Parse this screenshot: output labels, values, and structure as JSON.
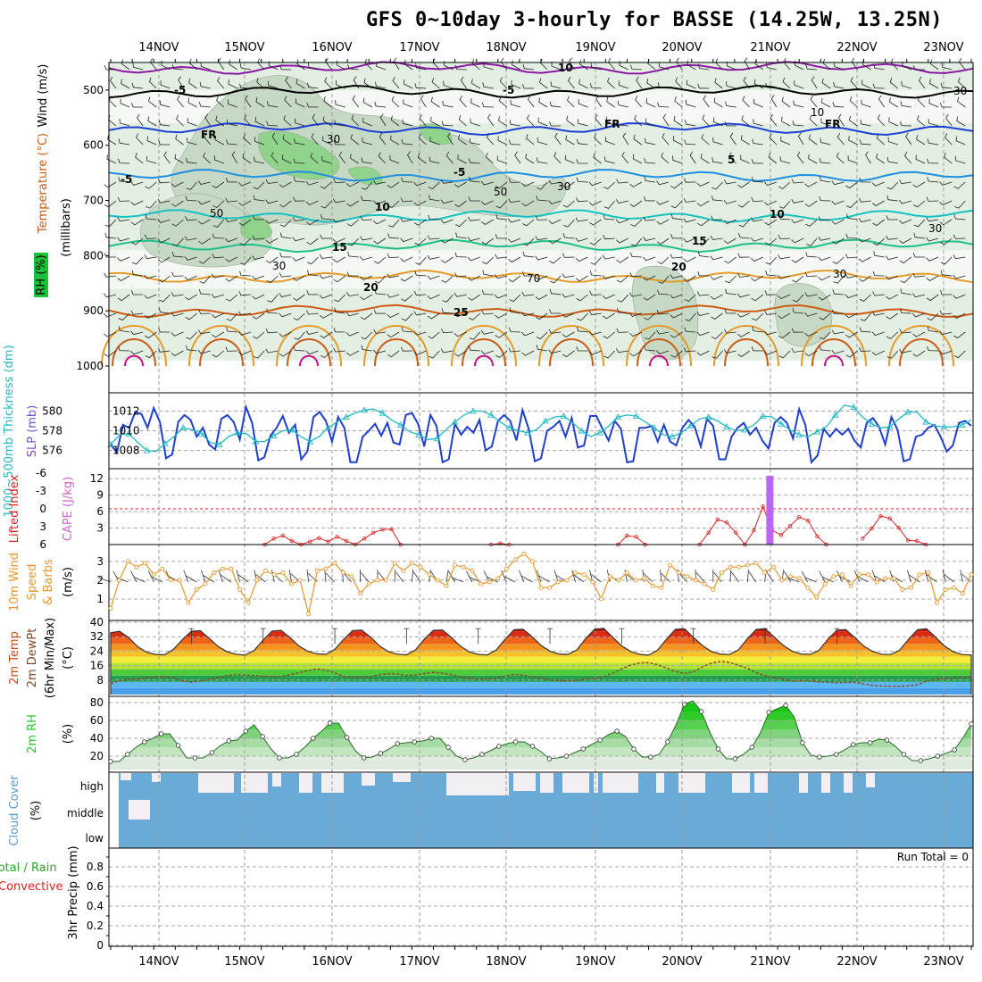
{
  "title": "GFS 0~10day 3-hourly for BASSE (14.25W, 13.25N)",
  "days": [
    "14NOV",
    "15NOV",
    "16NOV",
    "17NOV",
    "18NOV",
    "19NOV",
    "20NOV",
    "21NOV",
    "22NOV",
    "23NOV"
  ],
  "colors": {
    "rh_shade": [
      "#e3efe2",
      "#c6d9c4",
      "#8fd48a"
    ],
    "temp_lines": [
      "#8b1aa5",
      "#000000",
      "#1e3fd4",
      "#1e8fe0",
      "#16c2c2",
      "#1fbf8a",
      "#e59a2a",
      "#cc5a12",
      "#cc0a8a"
    ],
    "slp": "#1f3fcf",
    "thickness": "#21b8c4",
    "cape": "#bb66ee",
    "lifted_index": "#dd2222",
    "wind10": "#e8962a",
    "dewpt": "#888888",
    "cloud": "#6aaad6",
    "rh2m": "#22cc22"
  },
  "chart_data": [
    {
      "type": "heatmap",
      "panel": "upper-air",
      "ylabel_rh": "RH (%)",
      "ylabel_temp": "Temperature (°C)",
      "ylabel_wind": "Wind (m/s)",
      "ylabel_p": "(millibars)",
      "yticks": [
        "500",
        "600",
        "700",
        "800",
        "900",
        "1000"
      ],
      "ylim": [
        450,
        1000
      ],
      "isotherm_labels": [
        "10",
        "-5",
        "-5",
        "FR",
        "FR",
        "FR",
        "-5",
        "-5",
        "5",
        "10",
        "10",
        "15",
        "15",
        "20",
        "20",
        "25"
      ],
      "rh_labels": [
        "30",
        "50",
        "30",
        "50",
        "30",
        "70",
        "10",
        "30",
        "30",
        "30"
      ],
      "isotherms": [
        {
          "name": "-10",
          "level_mb": 460
        },
        {
          "name": "-5",
          "level_mb": 503
        },
        {
          "name": "FR",
          "level_mb": 570
        },
        {
          "name": "5",
          "level_mb": 655
        },
        {
          "name": "10",
          "level_mb": 728
        },
        {
          "name": "15",
          "level_mb": 782
        },
        {
          "name": "20",
          "level_mb": 838
        },
        {
          "name": "25",
          "level_mb": 900
        }
      ]
    },
    {
      "type": "line",
      "panel": "slp-thickness",
      "ylabel_left": "1000~500mb Thickness (dm)",
      "ylabel_right": "SLP (mb)",
      "yticks_left": [
        "580",
        "578",
        "576"
      ],
      "yticks_right": [
        "1012",
        "1010",
        "1008"
      ],
      "ylim_left": [
        574.6,
        581.4
      ],
      "ylim_right": [
        1006.6,
        1013.4
      ],
      "series": [
        {
          "name": "SLP (mb)",
          "axis": "right",
          "values": [
            1008.6,
            1007.8,
            1010.6,
            1010.3,
            1011.9,
            1011.7,
            1010.3,
            1012.3,
            1010.9,
            1007.2,
            1007.6,
            1010.9,
            1011.6,
            1011.1,
            1009.4,
            1010.3,
            1008.6,
            1008.1,
            1011.2,
            1011.6,
            1010.9,
            1009.1,
            1012.4,
            1010.8,
            1007.0,
            1007.3,
            1009.5,
            1010.3,
            1011.5,
            1009.8,
            1010.6,
            1007.1,
            1007.9,
            1011.4,
            1011.9,
            1011.0,
            1008.9,
            1011.4,
            1010.3,
            1006.8,
            1006.8,
            1009.4,
            1010.0,
            1010.7,
            1009.5,
            1010.8,
            1008.8,
            1008.6,
            1011.6,
            1011.8,
            1010.7,
            1008.4,
            1011.6,
            1010.5,
            1006.8,
            1007.1,
            1010.7,
            1009.6,
            1010.4,
            1009.8,
            1011.1,
            1008.0,
            1008.4,
            1011.0,
            1011.6,
            1011.0,
            1009.0,
            1012.1,
            1010.2,
            1006.9,
            1007.2,
            1010.0,
            1010.4,
            1011.0,
            1009.4,
            1011.3,
            1008.3,
            1008.5,
            1011.5,
            1011.5,
            1010.2,
            1009.0,
            1011.0,
            1010.2,
            1006.8,
            1006.9,
            1010.3,
            1010.3,
            1010.5,
            1008.9,
            1010.6,
            1008.9,
            1008.5,
            1010.3,
            1011.1,
            1010.4,
            1008.4,
            1011.2,
            1010.5,
            1007.1,
            1007.1,
            1009.4,
            1010.3,
            1010.8,
            1009.6,
            1010.3,
            1009.0,
            1008.2,
            1010.8,
            1011.4,
            1010.8,
            1009.2,
            1012.2,
            1010.6,
            1006.8,
            1007.5,
            1010.2,
            1009.4,
            1010.2,
            1009.6,
            1010.2,
            1009.0,
            1008.3,
            1010.8,
            1011.3,
            1010.4,
            1008.6,
            1011.4,
            1010.1,
            1006.9,
            1007.1,
            1009.4,
            1009.6,
            1010.3,
            1010.6,
            1009.4,
            1007.9,
            1008.5,
            1010.8,
            1011.0,
            1010.5
          ]
        },
        {
          "name": "1000~500mb Thickness (dm)",
          "axis": "left",
          "values": [
            576.6,
            577.6,
            577.7,
            576.8,
            576.0,
            575.9,
            576.7,
            577.4,
            578.3,
            578.1,
            577.7,
            576.8,
            576.6,
            577.4,
            577.8,
            577.7,
            576.9,
            576.9,
            577.5,
            578.0,
            578.1,
            577.4,
            576.9,
            577.4,
            578.3,
            578.9,
            579.4,
            579.8,
            580.1,
            580.2,
            579.8,
            579.1,
            578.6,
            577.9,
            577.6,
            577.1,
            577.2,
            578.1,
            578.9,
            579.6,
            580.0,
            580.0,
            579.6,
            578.9,
            578.3,
            578.0,
            577.8,
            578.1,
            579.0,
            579.4,
            579.5,
            578.8,
            578.0,
            577.4,
            577.8,
            578.5,
            579.4,
            579.6,
            579.5,
            578.9,
            578.3,
            577.6,
            577.4,
            577.8,
            578.5,
            579.2,
            579.4,
            579.0,
            578.4,
            578.0,
            578.1,
            578.6,
            579.5,
            579.4,
            578.7,
            578.1,
            577.6,
            577.4,
            577.9,
            578.4,
            579.6,
            580.6,
            580.4,
            579.4,
            578.7,
            578.3,
            578.4,
            579.2,
            579.9,
            579.9,
            578.9,
            578.5,
            578.4,
            578.4,
            578.6,
            579.1
          ]
        }
      ]
    },
    {
      "type": "line",
      "panel": "cape-li",
      "ylabel_left": "Lifted Index",
      "ylabel_right": "CAPE (J/kg)",
      "yticks_left": [
        "-6",
        "-3",
        "0",
        "3",
        "6"
      ],
      "yticks_right": [
        "12",
        "9",
        "6",
        "3"
      ],
      "ylim_left": [
        -6,
        6
      ],
      "ylim_right": [
        0,
        13
      ],
      "series": [
        {
          "name": "Lifted Index",
          "values": [
            null,
            null,
            null,
            null,
            null,
            null,
            null,
            null,
            null,
            null,
            null,
            null,
            null,
            null,
            null,
            null,
            null,
            6.0,
            5.0,
            4.5,
            5.4,
            6.0,
            5.5,
            4.9,
            5.5,
            4.7,
            5.4,
            6.0,
            5.0,
            4.0,
            3.5,
            3.4,
            6.0,
            null,
            null,
            null,
            null,
            null,
            null,
            null,
            null,
            null,
            6.0,
            5.8,
            6.0,
            null,
            null,
            null,
            null,
            null,
            null,
            null,
            null,
            null,
            null,
            null,
            6.0,
            4.5,
            4.7,
            6.0,
            null,
            null,
            null,
            null,
            null,
            6.0,
            4.0,
            1.8,
            2.3,
            4.0,
            6.0,
            3.6,
            -0.4,
            3.6,
            4.4,
            2.9,
            1.4,
            2.0,
            4.6,
            6.0,
            null,
            null,
            null,
            5.0,
            3.3,
            1.2,
            1.6,
            3.2,
            5.3,
            5.4,
            6.0,
            null,
            null,
            null,
            null,
            null
          ]
        },
        {
          "name": "CAPE (J/kg)",
          "values": [
            0,
            0,
            0,
            0,
            0,
            0,
            0,
            0,
            0,
            0,
            0,
            0,
            0,
            0,
            0,
            0,
            0,
            0,
            0,
            0,
            0,
            0,
            0,
            0,
            0,
            0,
            0,
            0,
            0,
            0,
            0,
            0,
            0,
            0,
            0,
            0,
            0,
            0,
            0,
            0,
            0,
            0,
            0,
            0,
            0,
            0,
            0,
            0,
            0,
            0,
            0,
            0,
            0,
            0,
            0,
            0,
            0,
            0,
            0,
            0,
            0,
            0,
            0,
            0,
            0,
            0,
            0,
            0,
            0,
            0,
            0,
            0,
            12.5,
            0,
            0,
            0,
            0,
            0,
            0,
            0,
            0,
            0,
            0,
            0,
            0,
            0,
            0,
            0,
            0,
            0,
            0,
            0,
            0,
            0,
            0
          ]
        }
      ]
    },
    {
      "type": "line",
      "panel": "wind10m",
      "ylabel": "10m Wind Speed & Barbs (m/s)",
      "yticks": [
        "3",
        "2",
        "1"
      ],
      "ylim": [
        0,
        3.8
      ],
      "series": [
        {
          "name": "10m Wind Speed",
          "values": [
            0.5,
            2.0,
            3.0,
            2.7,
            2.9,
            2.3,
            2.6,
            2.0,
            2.0,
            0.8,
            1.5,
            1.8,
            2.4,
            2.6,
            2.6,
            1.5,
            0.8,
            2.0,
            2.5,
            2.3,
            2.4,
            1.8,
            2.0,
            0.2,
            2.5,
            2.6,
            2.9,
            2.4,
            2.2,
            1.3,
            1.8,
            2.0,
            2.0,
            2.9,
            2.5,
            2.9,
            2.7,
            2.3,
            2.0,
            1.7,
            2.8,
            2.7,
            2.5,
            1.8,
            1.9,
            2.1,
            2.6,
            3.1,
            3.4,
            3.0,
            1.6,
            1.6,
            1.9,
            2.0,
            2.4,
            2.3,
            1.9,
            1.0,
            2.2,
            2.0,
            2.4,
            2.0,
            2.1,
            1.7,
            1.6,
            2.8,
            2.4,
            2.2,
            2.0,
            1.8,
            1.5,
            2.4,
            2.7,
            2.7,
            2.8,
            2.9,
            2.4,
            2.7,
            2.0,
            2.2,
            2.1,
            1.6,
            1.1,
            1.8,
            2.2,
            2.3,
            1.7,
            2.3,
            2.3,
            1.9,
            2.1,
            2.1,
            1.5,
            1.6,
            2.3,
            2.4,
            0.8,
            1.5,
            1.6,
            1.3,
            2.3
          ]
        }
      ]
    },
    {
      "type": "area",
      "panel": "temp2m",
      "ylabel": "2m Temp 2m DewPt (6hr Min/Max) (°C)",
      "yticks": [
        "40",
        "32",
        "24",
        "16",
        "8"
      ],
      "ylim": [
        0,
        40
      ],
      "series": [
        {
          "name": "2m Temp",
          "values": [
            34.2,
            35.0,
            31.5,
            26.5,
            23.4,
            22.2,
            22.0,
            25.0,
            30.3,
            35.0,
            35.3,
            31.0,
            26.5,
            23.6,
            22.3,
            21.8,
            24.4,
            30.1,
            35.1,
            35.5,
            31.5,
            26.8,
            23.9,
            22.5,
            22.2,
            25.0,
            30.6,
            35.4,
            35.6,
            31.7,
            26.8,
            23.7,
            22.3,
            22.0,
            24.7,
            30.7,
            35.5,
            35.7,
            31.6,
            26.8,
            23.6,
            22.2,
            21.9,
            24.6,
            30.6,
            35.9,
            36.1,
            32.0,
            27.2,
            24.0,
            22.4,
            22.2,
            24.7,
            31.0,
            36.2,
            36.6,
            31.7,
            26.9,
            23.8,
            22.2,
            21.8,
            24.5,
            30.6,
            36.1,
            36.4,
            31.6,
            27.1,
            23.8,
            22.4,
            22.1,
            24.6,
            30.7,
            36.0,
            36.5,
            31.9,
            27.3,
            24.0,
            22.4,
            22.2,
            24.4,
            30.5,
            35.6,
            35.9,
            31.5,
            26.8,
            23.8,
            22.3,
            22.1,
            24.5,
            30.5,
            35.9,
            36.4,
            31.8,
            26.9,
            23.6,
            22.1,
            21.9
          ]
        },
        {
          "name": "2m DewPt",
          "values": [
            6.2,
            7.6,
            8.3,
            8.5,
            9.3,
            9.7,
            10.0,
            9.3,
            7.5,
            6.9,
            7.4,
            8.4,
            9.4,
            10.5,
            11.0,
            10.7,
            10.5,
            10.1,
            9.9,
            10.0,
            11.0,
            12.0,
            13.3,
            14.2,
            13.5,
            12.0,
            10.0,
            9.5,
            9.6,
            10.0,
            11.0,
            11.5,
            11.4,
            10.5,
            10.8,
            11.6,
            12.3,
            11.8,
            11.0,
            10.0,
            9.0,
            8.5,
            8.5,
            9.1,
            10.2,
            11.1,
            10.8,
            9.7,
            9.0,
            8.0,
            7.8,
            7.5,
            7.8,
            8.5,
            8.7,
            9.8,
            11.9,
            14.2,
            16.3,
            17.5,
            17.7,
            16.5,
            14.6,
            12.8,
            11.6,
            12.6,
            15.3,
            17.4,
            18.3,
            17.8,
            16.3,
            14.5,
            12.1,
            10.4,
            9.3,
            8.4,
            7.5,
            7.5,
            7.5,
            7.0,
            6.8,
            6.6,
            6.7,
            6.7,
            5.9,
            5.0,
            4.7,
            4.6,
            4.6,
            4.8,
            5.4,
            7.5,
            8.2,
            8.7,
            9.1,
            9.4,
            10.0
          ]
        }
      ]
    },
    {
      "type": "area",
      "panel": "rh2m",
      "ylabel": "2m RH (%)",
      "yticks": [
        "80",
        "60",
        "40",
        "20"
      ],
      "ylim": [
        5,
        85
      ],
      "series": [
        {
          "name": "2m RH",
          "values": [
            14,
            14,
            22,
            30,
            36,
            40,
            45,
            45,
            32,
            18,
            18,
            18,
            24,
            32,
            37,
            38,
            48,
            55,
            42,
            28,
            18,
            18,
            22,
            30,
            40,
            48,
            57,
            57,
            41,
            26,
            18,
            19,
            23,
            28,
            34,
            35,
            36,
            37,
            40,
            40,
            30,
            20,
            16,
            18,
            22,
            26,
            31,
            34,
            36,
            36,
            31,
            25,
            17,
            18,
            20,
            24,
            28,
            33,
            38,
            44,
            48,
            42,
            28,
            19,
            19,
            22,
            36,
            55,
            78,
            82,
            70,
            47,
            28,
            17,
            17,
            22,
            30,
            46,
            69,
            73,
            77,
            64,
            35,
            21,
            19,
            20,
            22,
            27,
            33,
            35,
            35,
            39,
            38,
            31,
            22,
            15,
            15,
            17,
            20,
            23,
            27,
            40,
            56
          ]
        }
      ]
    },
    {
      "type": "area",
      "panel": "cloud-cover",
      "ylabel": "Cloud Cover (%)",
      "yticks": [
        "high",
        "middle",
        "low"
      ]
    },
    {
      "type": "bar",
      "panel": "precip",
      "ylabel_a": "Total / Rain",
      "ylabel_b": "Convective",
      "ylabel_c": "3hr Precip (mm)",
      "yticks": [
        "0.8",
        "0.6",
        "0.4",
        "0.2",
        "0"
      ],
      "ylim": [
        0,
        0.9
      ],
      "annotation": "Run Total = 0",
      "values": []
    }
  ]
}
